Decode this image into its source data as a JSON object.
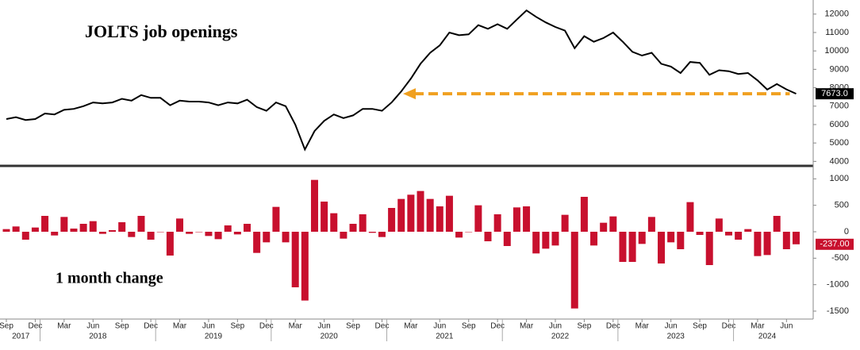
{
  "chart_data": [
    {
      "type": "line",
      "title": "JOLTS job openings",
      "color": "#000000",
      "x": [
        "2017-09",
        "2017-10",
        "2017-11",
        "2017-12",
        "2018-01",
        "2018-02",
        "2018-03",
        "2018-04",
        "2018-05",
        "2018-06",
        "2018-07",
        "2018-08",
        "2018-09",
        "2018-10",
        "2018-11",
        "2018-12",
        "2019-01",
        "2019-02",
        "2019-03",
        "2019-04",
        "2019-05",
        "2019-06",
        "2019-07",
        "2019-08",
        "2019-09",
        "2019-10",
        "2019-11",
        "2019-12",
        "2020-01",
        "2020-02",
        "2020-03",
        "2020-04",
        "2020-05",
        "2020-06",
        "2020-07",
        "2020-08",
        "2020-09",
        "2020-10",
        "2020-11",
        "2020-12",
        "2021-01",
        "2021-02",
        "2021-03",
        "2021-04",
        "2021-05",
        "2021-06",
        "2021-07",
        "2021-08",
        "2021-09",
        "2021-10",
        "2021-11",
        "2021-12",
        "2022-01",
        "2022-02",
        "2022-03",
        "2022-04",
        "2022-05",
        "2022-06",
        "2022-07",
        "2022-08",
        "2022-09",
        "2022-10",
        "2022-11",
        "2022-12",
        "2023-01",
        "2023-02",
        "2023-03",
        "2023-04",
        "2023-05",
        "2023-06",
        "2023-07",
        "2023-08",
        "2023-09",
        "2023-10",
        "2023-11",
        "2023-12",
        "2024-01",
        "2024-02",
        "2024-03",
        "2024-04",
        "2024-05",
        "2024-06",
        "2024-07"
      ],
      "values": [
        6300,
        6400,
        6250,
        6300,
        6600,
        6550,
        6800,
        6850,
        7000,
        7200,
        7150,
        7200,
        7400,
        7300,
        7600,
        7450,
        7450,
        7050,
        7300,
        7250,
        7250,
        7200,
        7050,
        7200,
        7150,
        7350,
        6950,
        6750,
        7200,
        7000,
        6000,
        4650,
        5650,
        6200,
        6550,
        6350,
        6500,
        6850,
        6850,
        6750,
        7200,
        7800,
        8500,
        9300,
        9900,
        10300,
        11000,
        10850,
        10900,
        11400,
        11200,
        11450,
        11200,
        11700,
        12200,
        11850,
        11550,
        11300,
        11100,
        10150,
        10800,
        10500,
        10700,
        11000,
        10500,
        9950,
        9750,
        9900,
        9300,
        9150,
        8800,
        9400,
        9350,
        8700,
        8950,
        8900,
        8750,
        8800,
        8400,
        7900,
        8200,
        7910,
        7673
      ],
      "value_labels": [
        null,
        null,
        null,
        null,
        null,
        null,
        null,
        null,
        null,
        null,
        null,
        null,
        null,
        null,
        null,
        null,
        null,
        null,
        null,
        null,
        null,
        null,
        null,
        null,
        null,
        null,
        null,
        null,
        null,
        null,
        null,
        null,
        null,
        null,
        null,
        null,
        null,
        null,
        null,
        null,
        null,
        null,
        null,
        null,
        null,
        null,
        null,
        null,
        null,
        null,
        null,
        null,
        null,
        null,
        null,
        null,
        null,
        null,
        null,
        null,
        null,
        null,
        null,
        null,
        null,
        null,
        null,
        null,
        null,
        null,
        null,
        null,
        null,
        null,
        null,
        null,
        null,
        null,
        null,
        null,
        null,
        null,
        "7673.0"
      ],
      "label_color": "#000000",
      "ylim": [
        3800,
        12550
      ],
      "yticks": [
        4000,
        5000,
        6000,
        7000,
        8000,
        9000,
        10000,
        11000,
        12000
      ],
      "annotation_color": "#f0a020"
    },
    {
      "type": "bar",
      "title": "1 month change",
      "color": "#c8102e",
      "x": [
        "2017-09",
        "2017-10",
        "2017-11",
        "2017-12",
        "2018-01",
        "2018-02",
        "2018-03",
        "2018-04",
        "2018-05",
        "2018-06",
        "2018-07",
        "2018-08",
        "2018-09",
        "2018-10",
        "2018-11",
        "2018-12",
        "2019-01",
        "2019-02",
        "2019-03",
        "2019-04",
        "2019-05",
        "2019-06",
        "2019-07",
        "2019-08",
        "2019-09",
        "2019-10",
        "2019-11",
        "2019-12",
        "2020-01",
        "2020-02",
        "2020-03",
        "2020-04",
        "2020-05",
        "2020-06",
        "2020-07",
        "2020-08",
        "2020-09",
        "2020-10",
        "2020-11",
        "2020-12",
        "2021-01",
        "2021-02",
        "2021-03",
        "2021-04",
        "2021-05",
        "2021-06",
        "2021-07",
        "2021-08",
        "2021-09",
        "2021-10",
        "2021-11",
        "2021-12",
        "2022-01",
        "2022-02",
        "2022-03",
        "2022-04",
        "2022-05",
        "2022-06",
        "2022-07",
        "2022-08",
        "2022-09",
        "2022-10",
        "2022-11",
        "2022-12",
        "2023-01",
        "2023-02",
        "2023-03",
        "2023-04",
        "2023-05",
        "2023-06",
        "2023-07",
        "2023-08",
        "2023-09",
        "2023-10",
        "2023-11",
        "2023-12",
        "2024-01",
        "2024-02",
        "2024-03",
        "2024-04",
        "2024-05",
        "2024-06",
        "2024-07"
      ],
      "values": [
        50,
        100,
        -150,
        80,
        300,
        -70,
        280,
        60,
        150,
        200,
        -40,
        30,
        180,
        -100,
        300,
        -150,
        0,
        -450,
        250,
        -40,
        0,
        -80,
        -140,
        120,
        -50,
        150,
        -400,
        -200,
        470,
        -200,
        -1050,
        -1300,
        980,
        570,
        350,
        -130,
        150,
        330,
        -20,
        -100,
        450,
        620,
        700,
        770,
        620,
        480,
        680,
        -110,
        0,
        500,
        -180,
        330,
        -270,
        460,
        480,
        -410,
        -320,
        -260,
        320,
        -1450,
        660,
        -260,
        170,
        290,
        -570,
        -570,
        -230,
        280,
        -600,
        -200,
        -330,
        560,
        -60,
        -630,
        250,
        -70,
        -150,
        50,
        -460,
        -440,
        300,
        -330,
        -237
      ],
      "value_labels": [
        null,
        null,
        null,
        null,
        null,
        null,
        null,
        null,
        null,
        null,
        null,
        null,
        null,
        null,
        null,
        null,
        null,
        null,
        null,
        null,
        null,
        null,
        null,
        null,
        null,
        null,
        null,
        null,
        null,
        null,
        null,
        null,
        null,
        null,
        null,
        null,
        null,
        null,
        null,
        null,
        null,
        null,
        null,
        null,
        null,
        null,
        null,
        null,
        null,
        null,
        null,
        null,
        null,
        null,
        null,
        null,
        null,
        null,
        null,
        null,
        null,
        null,
        null,
        null,
        null,
        null,
        null,
        null,
        null,
        null,
        null,
        null,
        null,
        null,
        null,
        null,
        null,
        null,
        null,
        null,
        null,
        null,
        "-237.00"
      ],
      "label_color": "#c8102e",
      "ylim": [
        -1620,
        1200
      ],
      "yticks": [
        -1500,
        -1000,
        -500,
        0,
        500,
        1000
      ],
      "xticks": [
        {
          "value": "2017-09",
          "label": "Sep"
        },
        {
          "value": "2017-12",
          "label": "Dec"
        },
        {
          "value": "2018-03",
          "label": "Mar"
        },
        {
          "value": "2018-06",
          "label": "Jun"
        },
        {
          "value": "2018-09",
          "label": "Sep"
        },
        {
          "value": "2018-12",
          "label": "Dec"
        },
        {
          "value": "2019-03",
          "label": "Mar"
        },
        {
          "value": "2019-06",
          "label": "Jun"
        },
        {
          "value": "2019-09",
          "label": "Sep"
        },
        {
          "value": "2019-12",
          "label": "Dec"
        },
        {
          "value": "2020-03",
          "label": "Mar"
        },
        {
          "value": "2020-06",
          "label": "Jun"
        },
        {
          "value": "2020-09",
          "label": "Sep"
        },
        {
          "value": "2020-12",
          "label": "Dec"
        },
        {
          "value": "2021-03",
          "label": "Mar"
        },
        {
          "value": "2021-06",
          "label": "Jun"
        },
        {
          "value": "2021-09",
          "label": "Sep"
        },
        {
          "value": "2021-12",
          "label": "Dec"
        },
        {
          "value": "2022-03",
          "label": "Mar"
        },
        {
          "value": "2022-06",
          "label": "Jun"
        },
        {
          "value": "2022-09",
          "label": "Sep"
        },
        {
          "value": "2022-12",
          "label": "Dec"
        },
        {
          "value": "2023-03",
          "label": "Mar"
        },
        {
          "value": "2023-06",
          "label": "Jun"
        },
        {
          "value": "2023-09",
          "label": "Sep"
        },
        {
          "value": "2023-12",
          "label": "Dec"
        },
        {
          "value": "2024-03",
          "label": "Mar"
        },
        {
          "value": "2024-06",
          "label": "Jun"
        }
      ],
      "years": [
        "2017",
        "2018",
        "2019",
        "2020",
        "2021",
        "2022",
        "2023",
        "2024"
      ]
    }
  ]
}
